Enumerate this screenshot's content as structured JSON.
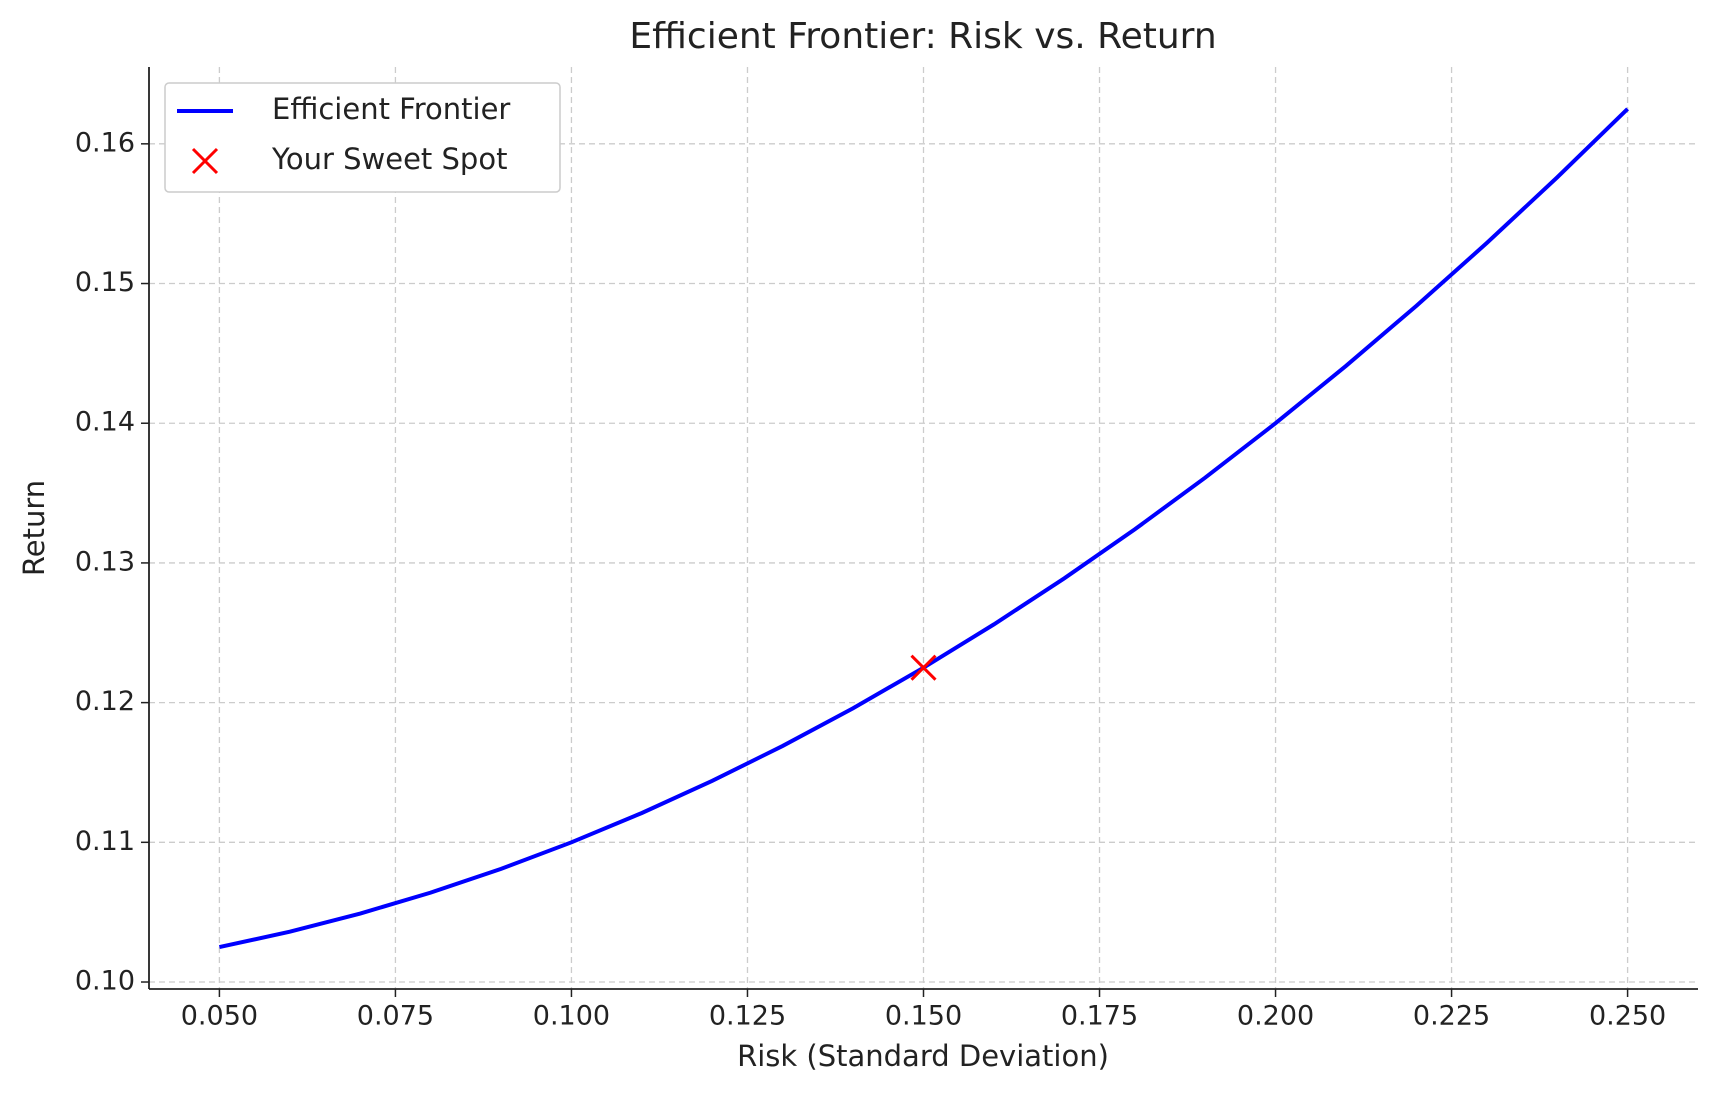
{
  "chart_data": {
    "type": "line",
    "title": "Efficient Frontier: Risk vs. Return",
    "xlabel": "Risk (Standard Deviation)",
    "ylabel": "Return",
    "xlim": [
      0.04,
      0.26
    ],
    "ylim": [
      0.0995,
      0.1655
    ],
    "xticks": [
      {
        "value": 0.05,
        "label": "0.050"
      },
      {
        "value": 0.075,
        "label": "0.075"
      },
      {
        "value": 0.1,
        "label": "0.100"
      },
      {
        "value": 0.125,
        "label": "0.125"
      },
      {
        "value": 0.15,
        "label": "0.150"
      },
      {
        "value": 0.175,
        "label": "0.175"
      },
      {
        "value": 0.2,
        "label": "0.200"
      },
      {
        "value": 0.225,
        "label": "0.225"
      },
      {
        "value": 0.25,
        "label": "0.250"
      }
    ],
    "yticks": [
      {
        "value": 0.1,
        "label": "0.10"
      },
      0.11,
      0.12,
      0.13,
      0.14,
      0.15,
      0.16
    ],
    "grid": true,
    "legend": "upper left",
    "series": [
      {
        "name": "Efficient Frontier",
        "type": "line",
        "color": "#0000ff",
        "x": [
          0.05,
          0.06,
          0.07,
          0.08,
          0.09,
          0.1,
          0.11,
          0.12,
          0.13,
          0.14,
          0.15,
          0.16,
          0.17,
          0.18,
          0.19,
          0.2,
          0.21,
          0.22,
          0.23,
          0.24,
          0.25
        ],
        "values": [
          0.1025,
          0.1036,
          0.1049,
          0.1064,
          0.1081,
          0.11,
          0.1121,
          0.1144,
          0.1169,
          0.1196,
          0.1225,
          0.1256,
          0.1289,
          0.1324,
          0.1361,
          0.14,
          0.1441,
          0.1484,
          0.1529,
          0.1576,
          0.1625
        ]
      },
      {
        "name": "Your Sweet Spot",
        "type": "scatter",
        "marker": "x",
        "color": "#ff0000",
        "x": [
          0.15
        ],
        "values": [
          0.1225
        ]
      }
    ]
  }
}
